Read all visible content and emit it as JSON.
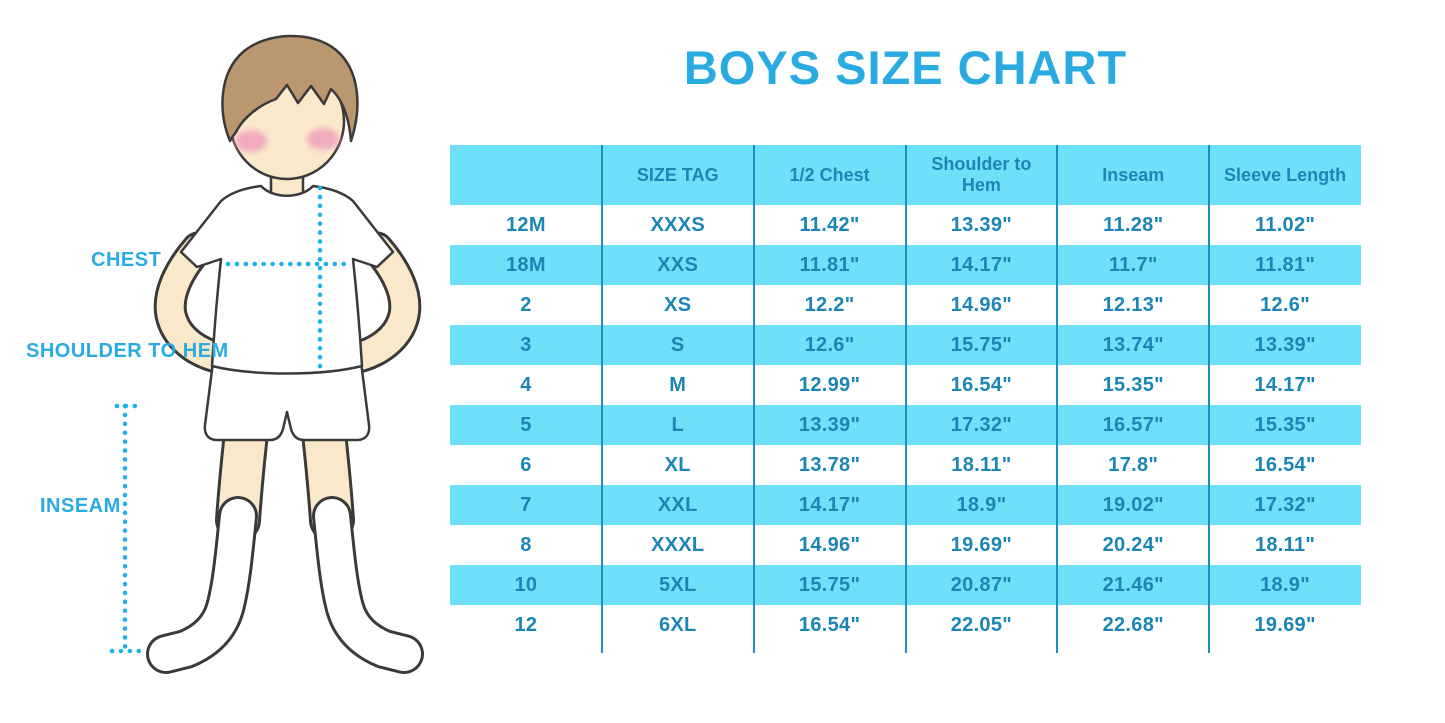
{
  "title": "BOYS SIZE CHART",
  "figure": {
    "description": "outline illustration of a boy with hands on hips wearing white t-shirt, shorts and socks",
    "labels": {
      "chest": "CHEST",
      "shoulder_to_hem": "SHOULDER TO HEM",
      "inseam": "INSEAM"
    }
  },
  "colors": {
    "accent": "#29ABE2",
    "table_text": "#1B86B6",
    "row_blue": "#6FE0FA",
    "divider": "#1D8FBF",
    "skin": "#FAE8CB",
    "hair": "#BA976E",
    "blush": "#F2ABBE",
    "outline": "#3A3A3A",
    "dots": "#1CB2E8"
  },
  "chart_data": {
    "type": "table",
    "title": "BOYS SIZE CHART",
    "columns": [
      "",
      "SIZE TAG",
      "1/2 Chest",
      "Shoulder to Hem",
      "Inseam",
      "Sleeve Length"
    ],
    "rows": [
      [
        "12M",
        "XXXS",
        "11.42\"",
        "13.39\"",
        "11.28\"",
        "11.02\""
      ],
      [
        "18M",
        "XXS",
        "11.81\"",
        "14.17\"",
        "11.7\"",
        "11.81\""
      ],
      [
        "2",
        "XS",
        "12.2\"",
        "14.96\"",
        "12.13\"",
        "12.6\""
      ],
      [
        "3",
        "S",
        "12.6\"",
        "15.75\"",
        "13.74\"",
        "13.39\""
      ],
      [
        "4",
        "M",
        "12.99\"",
        "16.54\"",
        "15.35\"",
        "14.17\""
      ],
      [
        "5",
        "L",
        "13.39\"",
        "17.32\"",
        "16.57\"",
        "15.35\""
      ],
      [
        "6",
        "XL",
        "13.78\"",
        "18.11\"",
        "17.8\"",
        "16.54\""
      ],
      [
        "7",
        "XXL",
        "14.17\"",
        "18.9\"",
        "19.02\"",
        "17.32\""
      ],
      [
        "8",
        "XXXL",
        "14.96\"",
        "19.69\"",
        "20.24\"",
        "18.11\""
      ],
      [
        "10",
        "5XL",
        "15.75\"",
        "20.87\"",
        "21.46\"",
        "18.9\""
      ],
      [
        "12",
        "6XL",
        "16.54\"",
        "22.05\"",
        "22.68\"",
        "19.69\""
      ]
    ],
    "units": "inches",
    "layout": {
      "striping": "header and alternate rows light blue",
      "column_dividers": true
    }
  }
}
